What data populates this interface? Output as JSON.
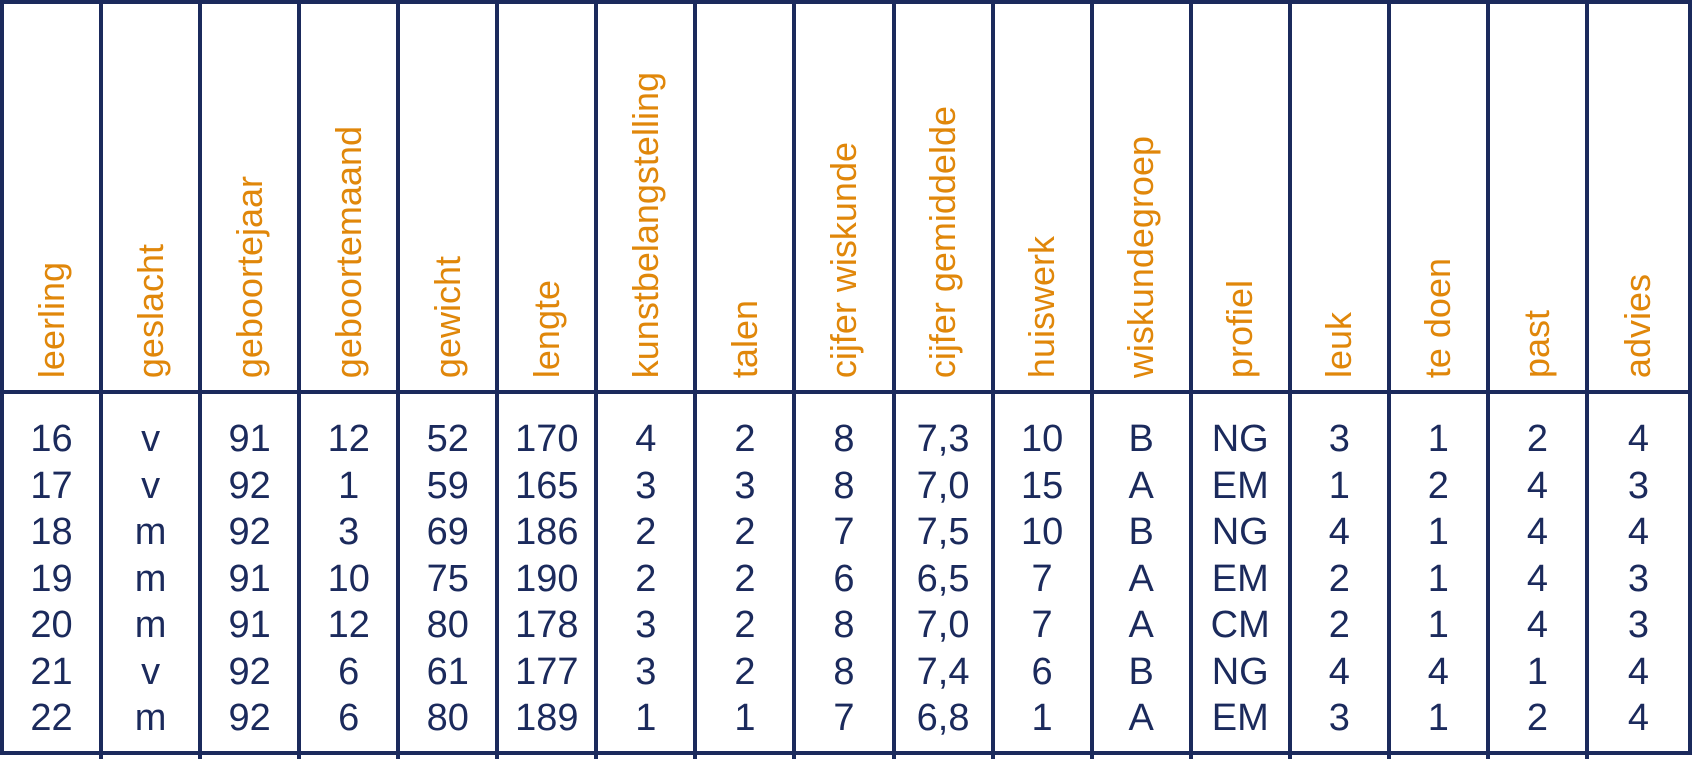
{
  "table": {
    "columns": [
      "leerling",
      "geslacht",
      "geboortejaar",
      "geboortemaand",
      "gewicht",
      "lengte",
      "kunstbelangstelling",
      "talen",
      "cijfer wiskunde",
      "cijfer gemiddelde",
      "huiswerk",
      "wiskundegroep",
      "profiel",
      "leuk",
      "te doen",
      "past",
      "advies"
    ],
    "rows": [
      [
        "16",
        "v",
        "91",
        "12",
        "52",
        "170",
        "4",
        "2",
        "8",
        "7,3",
        "10",
        "B",
        "NG",
        "3",
        "1",
        "2",
        "4"
      ],
      [
        "17",
        "v",
        "92",
        "1",
        "59",
        "165",
        "3",
        "3",
        "8",
        "7,0",
        "15",
        "A",
        "EM",
        "1",
        "2",
        "4",
        "3"
      ],
      [
        "18",
        "m",
        "92",
        "3",
        "69",
        "186",
        "2",
        "2",
        "7",
        "7,5",
        "10",
        "B",
        "NG",
        "4",
        "1",
        "4",
        "4"
      ],
      [
        "19",
        "m",
        "91",
        "10",
        "75",
        "190",
        "2",
        "2",
        "6",
        "6,5",
        "7",
        "A",
        "EM",
        "2",
        "1",
        "4",
        "3"
      ],
      [
        "20",
        "m",
        "91",
        "12",
        "80",
        "178",
        "3",
        "2",
        "8",
        "7,0",
        "7",
        "A",
        "CM",
        "2",
        "1",
        "4",
        "3"
      ],
      [
        "21",
        "v",
        "92",
        "6",
        "61",
        "177",
        "3",
        "2",
        "8",
        "7,4",
        "6",
        "B",
        "NG",
        "4",
        "4",
        "1",
        "4"
      ],
      [
        "22",
        "m",
        "92",
        "6",
        "80",
        "189",
        "1",
        "1",
        "7",
        "6,8",
        "1",
        "A",
        "EM",
        "3",
        "1",
        "2",
        "4"
      ]
    ]
  },
  "colors": {
    "border": "#1b2a5c",
    "header_text": "#e0870a",
    "body_text": "#1b2a5c"
  }
}
